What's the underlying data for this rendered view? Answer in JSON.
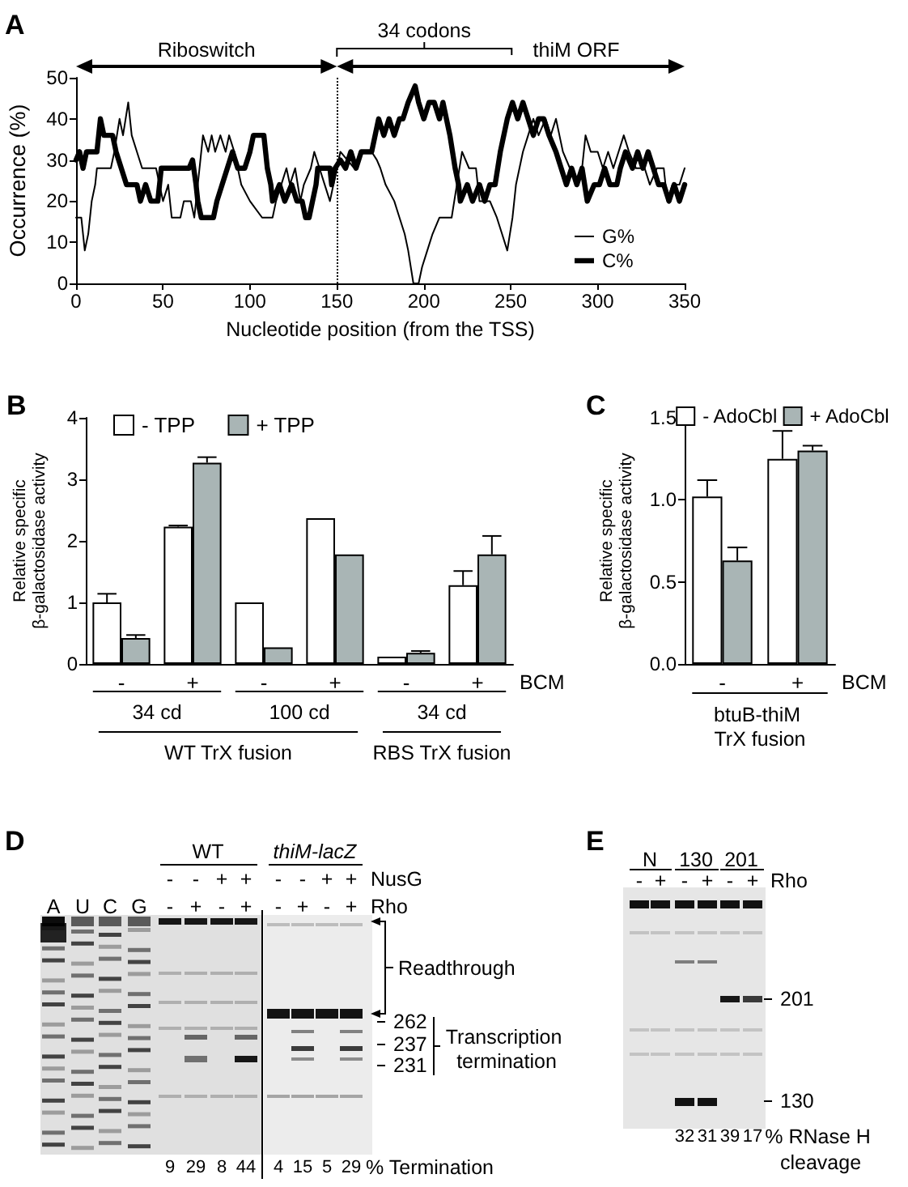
{
  "chart_data": [
    {
      "type": "line",
      "title": "A",
      "xlabel": "Nucleotide position (from the TSS)",
      "ylabel": "Occurrence (%)",
      "xlim": [
        0,
        350
      ],
      "xticks": [
        0,
        50,
        100,
        150,
        200,
        250,
        300,
        350
      ],
      "ylim": [
        0,
        50
      ],
      "yticks": [
        0,
        10,
        20,
        30,
        40,
        50
      ],
      "legend": "bottom right",
      "marker": "none",
      "line_style": "solid",
      "ref_lines": [
        {
          "axis": "x",
          "value": 150,
          "line_style": "dotted",
          "color": "#000000"
        }
      ],
      "annotations": [
        "Riboswitch",
        "34 codons",
        "thiM ORF"
      ],
      "series": [
        {
          "name": "G%",
          "color": "#000000",
          "x": [
            0,
            3,
            5,
            7,
            9,
            11,
            12,
            20,
            22,
            25,
            27,
            30,
            32,
            35,
            38,
            46,
            48,
            50,
            53,
            55,
            60,
            62,
            66,
            68,
            70,
            72,
            73,
            76,
            78,
            80,
            83,
            86,
            88,
            91,
            93,
            95,
            100,
            107,
            113,
            115,
            118,
            121,
            123,
            126,
            129,
            131,
            135,
            137,
            140,
            143,
            146,
            150,
            152,
            160,
            165,
            170,
            173,
            175,
            178,
            183,
            186,
            189,
            191,
            194,
            197,
            199,
            202,
            205,
            209,
            216,
            219,
            222,
            226,
            230,
            232,
            238,
            242,
            245,
            248,
            251,
            253,
            257,
            260,
            263,
            266,
            270,
            273,
            276,
            278,
            280,
            284,
            288,
            291,
            293,
            296,
            300,
            303,
            306,
            309,
            312,
            315,
            318,
            322,
            327,
            330,
            334,
            338,
            340,
            343,
            347,
            350
          ],
          "values": [
            16,
            16,
            8,
            12,
            20,
            24,
            28,
            28,
            32,
            40,
            36,
            44,
            36,
            32,
            28,
            28,
            24,
            20,
            24,
            16,
            16,
            20,
            20,
            16,
            24,
            32,
            36,
            32,
            36,
            32,
            36,
            32,
            36,
            32,
            28,
            24,
            20,
            16,
            16,
            20,
            24,
            28,
            24,
            28,
            20,
            24,
            28,
            32,
            28,
            24,
            20,
            28,
            32,
            28,
            32,
            32,
            30,
            28,
            24,
            20,
            16,
            12,
            8,
            0,
            0,
            4,
            8,
            12,
            16,
            16,
            24,
            32,
            28,
            28,
            20,
            20,
            16,
            12,
            8,
            16,
            24,
            32,
            36,
            40,
            36,
            40,
            36,
            40,
            36,
            32,
            28,
            24,
            28,
            36,
            32,
            32,
            28,
            32,
            28,
            32,
            36,
            32,
            28,
            28,
            24,
            28,
            28,
            20,
            24,
            24,
            28
          ]
        },
        {
          "name": "C%",
          "color": "#000000",
          "x": [
            0,
            2,
            4,
            6,
            12,
            13,
            14,
            16,
            21,
            23,
            26,
            29,
            35,
            37,
            40,
            43,
            47,
            49,
            65,
            67,
            69,
            70,
            72,
            79,
            81,
            84,
            87,
            90,
            93,
            97,
            100,
            102,
            108,
            110,
            112,
            113,
            117,
            120,
            124,
            127,
            130,
            132,
            134,
            136,
            138,
            139,
            146,
            147,
            149,
            152,
            155,
            158,
            161,
            164,
            167,
            170,
            172,
            174,
            177,
            180,
            183,
            186,
            188,
            191,
            195,
            197,
            200,
            203,
            206,
            209,
            211,
            213,
            215,
            218,
            220,
            221,
            225,
            228,
            232,
            235,
            238,
            241,
            244,
            248,
            251,
            254,
            257,
            260,
            263,
            266,
            269,
            272,
            276,
            279,
            282,
            285,
            288,
            291,
            294,
            298,
            301,
            304,
            307,
            311,
            313,
            316,
            320,
            323,
            326,
            329,
            332,
            335,
            338,
            341,
            344,
            347,
            350
          ],
          "values": [
            30,
            32,
            28,
            32,
            32,
            36,
            40,
            36,
            36,
            32,
            28,
            24,
            24,
            20,
            24,
            20,
            20,
            28,
            28,
            30,
            24,
            20,
            16,
            16,
            20,
            24,
            28,
            32,
            28,
            28,
            32,
            36,
            36,
            28,
            24,
            20,
            24,
            20,
            24,
            20,
            20,
            16,
            16,
            20,
            24,
            28,
            28,
            24,
            28,
            30,
            28,
            32,
            28,
            32,
            32,
            32,
            36,
            40,
            36,
            40,
            36,
            40,
            40,
            44,
            48,
            44,
            40,
            44,
            44,
            40,
            44,
            40,
            36,
            28,
            24,
            20,
            24,
            20,
            24,
            20,
            24,
            24,
            32,
            40,
            44,
            40,
            44,
            40,
            36,
            40,
            40,
            36,
            32,
            28,
            24,
            28,
            24,
            28,
            20,
            24,
            24,
            28,
            24,
            24,
            28,
            32,
            28,
            32,
            28,
            32,
            28,
            24,
            24,
            20,
            24,
            20,
            24
          ]
        }
      ]
    },
    {
      "type": "bar",
      "title": "B",
      "ylabel": "Relative specific β-galactosidase activity",
      "xlabel": "BCM",
      "categories": [
        "-",
        "+",
        "-",
        "+",
        "-",
        "+"
      ],
      "ylim": [
        0,
        4
      ],
      "yticks": [
        0,
        1,
        2,
        3,
        4
      ],
      "legend": "top left",
      "annotations": [
        "34 cd",
        "100 cd",
        "34 cd",
        "WT TrX fusion",
        "RBS TrX fusion"
      ],
      "series": [
        {
          "name": "- TPP",
          "color": "#ffffff",
          "values": [
            1.0,
            2.23,
            1.0,
            2.37,
            0.12,
            1.28
          ],
          "errors": [
            [
              1.0,
              1.14
            ],
            [
              2.23,
              2.25
            ],
            null,
            null,
            null,
            [
              1.28,
              1.51
            ]
          ]
        },
        {
          "name": "+ TPP",
          "color": "#a9b5b5",
          "values": [
            0.42,
            3.27,
            0.27,
            1.78,
            0.18,
            1.78
          ],
          "errors": [
            [
              0.42,
              0.47
            ],
            [
              3.27,
              3.36
            ],
            null,
            null,
            [
              0.18,
              0.21
            ],
            [
              1.78,
              2.08
            ]
          ]
        }
      ]
    },
    {
      "type": "bar",
      "title": "C",
      "ylabel": "Relative specific β-galactosidase activity",
      "xlabel": "BCM",
      "categories": [
        "-",
        "+"
      ],
      "ylim": [
        0,
        1.5
      ],
      "yticks": [
        {
          "value": 0,
          "label": "0.0"
        },
        0.5,
        {
          "value": 1,
          "label": "1.0"
        },
        1.5
      ],
      "legend": "top right",
      "annotations": [
        "btuB-thiM TrX fusion"
      ],
      "series": [
        {
          "name": "- AdoCbl",
          "color": "#ffffff",
          "values": [
            1.02,
            1.25
          ],
          "errors": [
            [
              1.02,
              1.12
            ],
            [
              1.25,
              1.42
            ]
          ]
        },
        {
          "name": "+ AdoCbl",
          "color": "#a9b5b5",
          "values": [
            0.63,
            1.3
          ],
          "errors": [
            [
              0.63,
              0.71
            ],
            [
              1.3,
              1.33
            ]
          ]
        }
      ]
    },
    {
      "type": "other",
      "title": "D",
      "categories": [
        "A",
        "U",
        "C",
        "G",
        null,
        null,
        null,
        null,
        null,
        null,
        null,
        null
      ],
      "values": [
        null,
        null,
        null,
        null,
        9,
        29,
        8,
        44,
        4,
        15,
        5,
        29
      ],
      "data_labels": true,
      "xlabel": "% Termination",
      "annotations": [
        "WT",
        "thiM-lacZ",
        "-",
        "-",
        "+",
        "+",
        "-",
        "-",
        "+",
        "+",
        "NusG",
        "-",
        "+",
        "-",
        "+",
        "-",
        "+",
        "-",
        "+",
        "Rho",
        "Readthrough",
        "262",
        "237",
        "231",
        "Transcription termination"
      ]
    },
    {
      "type": "other",
      "title": "E",
      "categories": [
        null,
        null,
        null,
        null,
        null,
        null
      ],
      "values": [
        null,
        null,
        32,
        31,
        39,
        17
      ],
      "data_labels": true,
      "xlabel": "% RNase H cleavage",
      "annotations": [
        "N",
        "130",
        "201",
        "-",
        "+",
        "-",
        "+",
        "-",
        "+",
        "Rho",
        "201",
        "130"
      ]
    }
  ]
}
